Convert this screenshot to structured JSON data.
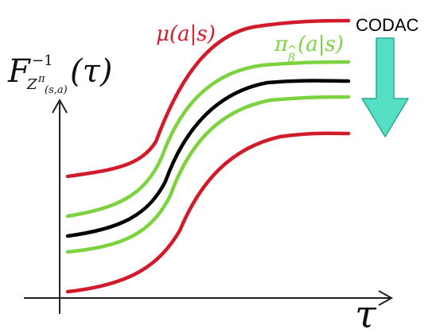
{
  "figure": {
    "y_axis_label": {
      "main": "F",
      "superscript": "−1",
      "subscript": "Z",
      "subscript_sup": "π",
      "subscript_sup_sub": "(s,a)",
      "argument": "(τ)"
    },
    "x_axis_label": "τ",
    "mu_label": "μ(a|s)",
    "pi_label": {
      "main": "π",
      "sub": "β",
      "hat": "^",
      "argument": "(a|s)"
    },
    "codac_label": "CODAC"
  },
  "colors": {
    "red": "#d11a2a",
    "green": "#7dd33f",
    "black": "#000000",
    "arrow_fill": "#55e0c6",
    "arrow_stroke": "#2aa793"
  },
  "icons": {
    "codac_arrow": "down-arrow-icon"
  }
}
